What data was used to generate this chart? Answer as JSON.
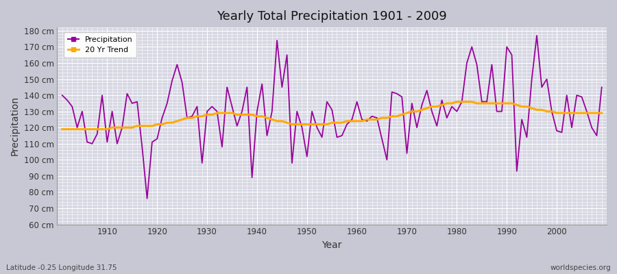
{
  "title": "Yearly Total Precipitation 1901 - 2009",
  "xlabel": "Year",
  "ylabel": "Precipitation",
  "subtitle": "Latitude -0.25 Longitude 31.75",
  "watermark": "worldspecies.org",
  "bg_color": "#c8c8d4",
  "plot_bg_color": "#d8d8e4",
  "grid_color": "#ffffff",
  "line_color": "#990099",
  "trend_color": "#ffaa00",
  "ylim": [
    60,
    182
  ],
  "yticks": [
    60,
    70,
    80,
    90,
    100,
    110,
    120,
    130,
    140,
    150,
    160,
    170,
    180
  ],
  "xlim": [
    1900,
    2010
  ],
  "xticks": [
    1910,
    1920,
    1930,
    1940,
    1950,
    1960,
    1970,
    1980,
    1990,
    2000
  ],
  "years": [
    1901,
    1902,
    1903,
    1904,
    1905,
    1906,
    1907,
    1908,
    1909,
    1910,
    1911,
    1912,
    1913,
    1914,
    1915,
    1916,
    1917,
    1918,
    1919,
    1920,
    1921,
    1922,
    1923,
    1924,
    1925,
    1926,
    1927,
    1928,
    1929,
    1930,
    1931,
    1932,
    1933,
    1934,
    1935,
    1936,
    1937,
    1938,
    1939,
    1940,
    1941,
    1942,
    1943,
    1944,
    1945,
    1946,
    1947,
    1948,
    1949,
    1950,
    1951,
    1952,
    1953,
    1954,
    1955,
    1956,
    1957,
    1958,
    1959,
    1960,
    1961,
    1962,
    1963,
    1964,
    1965,
    1966,
    1967,
    1968,
    1969,
    1970,
    1971,
    1972,
    1973,
    1974,
    1975,
    1976,
    1977,
    1978,
    1979,
    1980,
    1981,
    1982,
    1983,
    1984,
    1985,
    1986,
    1987,
    1988,
    1989,
    1990,
    1991,
    1992,
    1993,
    1994,
    1995,
    1996,
    1997,
    1998,
    1999,
    2000,
    2001,
    2002,
    2003,
    2004,
    2005,
    2006,
    2007,
    2008,
    2009
  ],
  "precip": [
    140,
    137,
    133,
    120,
    130,
    111,
    110,
    116,
    140,
    111,
    130,
    110,
    120,
    141,
    135,
    136,
    108,
    76,
    111,
    113,
    126,
    135,
    149,
    159,
    148,
    126,
    127,
    133,
    98,
    130,
    133,
    130,
    108,
    145,
    133,
    121,
    130,
    145,
    89,
    130,
    147,
    115,
    130,
    174,
    145,
    165,
    98,
    130,
    120,
    102,
    130,
    120,
    114,
    136,
    131,
    114,
    115,
    122,
    125,
    136,
    125,
    124,
    127,
    126,
    113,
    100,
    142,
    141,
    139,
    104,
    135,
    120,
    134,
    143,
    130,
    121,
    137,
    126,
    133,
    130,
    136,
    160,
    170,
    159,
    136,
    136,
    159,
    130,
    130,
    170,
    165,
    93,
    125,
    114,
    150,
    177,
    145,
    150,
    130,
    118,
    117,
    140,
    120,
    140,
    139,
    130,
    120,
    115,
    145
  ],
  "trend": [
    119,
    119,
    119,
    119,
    119,
    119,
    119,
    119,
    119,
    119,
    120,
    120,
    120,
    120,
    120,
    121,
    121,
    121,
    121,
    122,
    122,
    123,
    123,
    124,
    125,
    126,
    126,
    127,
    127,
    128,
    128,
    129,
    129,
    129,
    129,
    128,
    128,
    128,
    128,
    127,
    127,
    126,
    125,
    124,
    124,
    123,
    122,
    122,
    122,
    122,
    122,
    122,
    122,
    122,
    123,
    123,
    123,
    124,
    124,
    124,
    124,
    125,
    125,
    125,
    126,
    126,
    127,
    127,
    128,
    129,
    130,
    130,
    131,
    132,
    133,
    133,
    134,
    135,
    135,
    136,
    136,
    136,
    136,
    135,
    135,
    135,
    135,
    135,
    135,
    135,
    135,
    134,
    133,
    133,
    132,
    131,
    131,
    130,
    130,
    129,
    129,
    129,
    129,
    129,
    129,
    129,
    129,
    129,
    129
  ]
}
